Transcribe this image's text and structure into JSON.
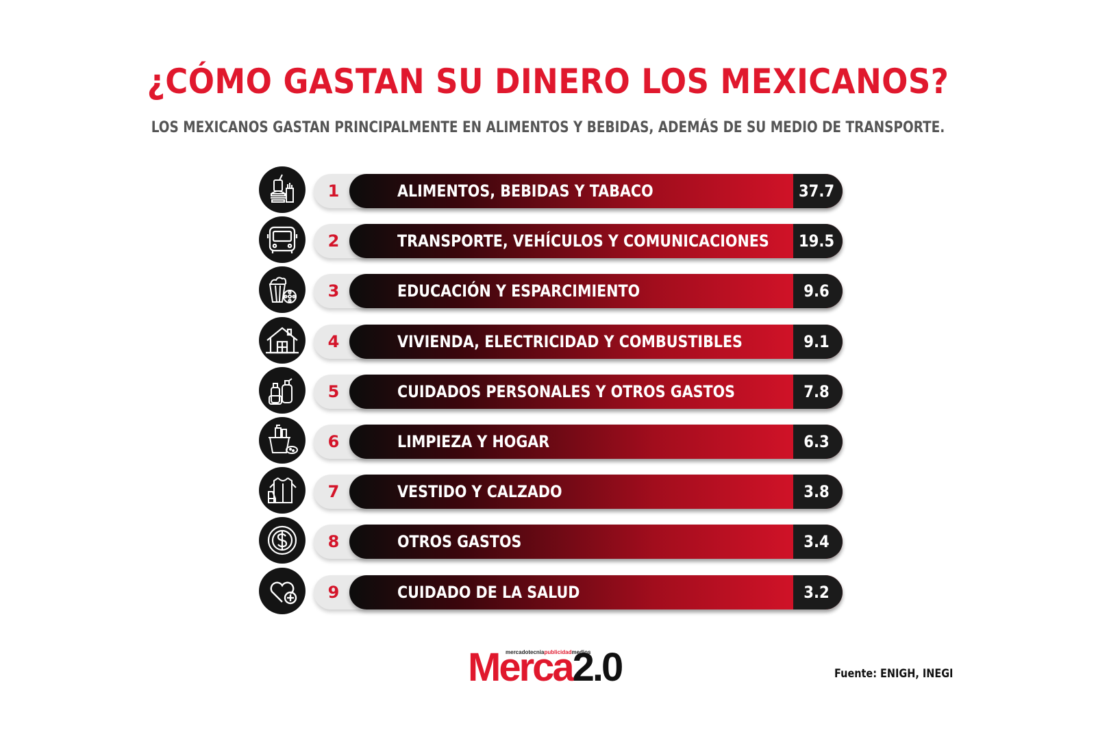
{
  "header": {
    "title": "¿CÓMO GASTAN SU DINERO LOS MEXICANOS?",
    "subtitle": "LOS MEXICANOS GASTAN PRINCIPALMENTE EN ALIMENTOS Y BEBIDAS, ADEMÁS DE SU MEDIO DE TRANSPORTE."
  },
  "chart_data": {
    "type": "bar",
    "title": "¿CÓMO GASTAN SU DINERO LOS MEXICANOS?",
    "subtitle": "LOS MEXICANOS GASTAN PRINCIPALMENTE EN ALIMENTOS Y BEBIDAS, ADEMÁS DE SU MEDIO DE TRANSPORTE.",
    "categories": [
      "ALIMENTOS, BEBIDAS Y TABACO",
      "TRANSPORTE, VEHÍCULOS Y COMUNICACIONES",
      "EDUCACIÓN Y ESPARCIMIENTO",
      "VIVIENDA, ELECTRICIDAD Y COMBUSTIBLES",
      "CUIDADOS PERSONALES Y OTROS GASTOS",
      "LIMPIEZA Y HOGAR",
      "VESTIDO Y CALZADO",
      "OTROS GASTOS",
      "CUIDADO DE LA SALUD"
    ],
    "values": [
      37.7,
      19.5,
      9.6,
      9.1,
      7.8,
      6.3,
      3.8,
      3.4,
      3.2
    ],
    "value_labels": [
      "37.7",
      "19.5",
      "9.6",
      "9.1",
      "7.8",
      "6.3",
      "3.8",
      "3.4",
      "3.2"
    ],
    "ranks": [
      "1",
      "2",
      "3",
      "4",
      "5",
      "6",
      "7",
      "8",
      "9"
    ],
    "icons": [
      "food-icon",
      "bus-icon",
      "popcorn-film-icon",
      "house-icon",
      "toiletries-icon",
      "cleaning-bucket-icon",
      "clothing-icon",
      "coin-dollar-icon",
      "heart-plus-icon"
    ],
    "colors": {
      "accent": "#e0182d",
      "bar_start": "#0c0c0c",
      "bar_end": "#e0142b",
      "value_box": "#1b1b1b"
    }
  },
  "footer": {
    "logo_tagline_a": "mercadotecnia",
    "logo_tagline_b": "publicidad",
    "logo_tagline_c": "medios",
    "logo_word": "Merca",
    "logo_version": "2.0",
    "source": "Fuente: ENIGH, INEGI"
  }
}
